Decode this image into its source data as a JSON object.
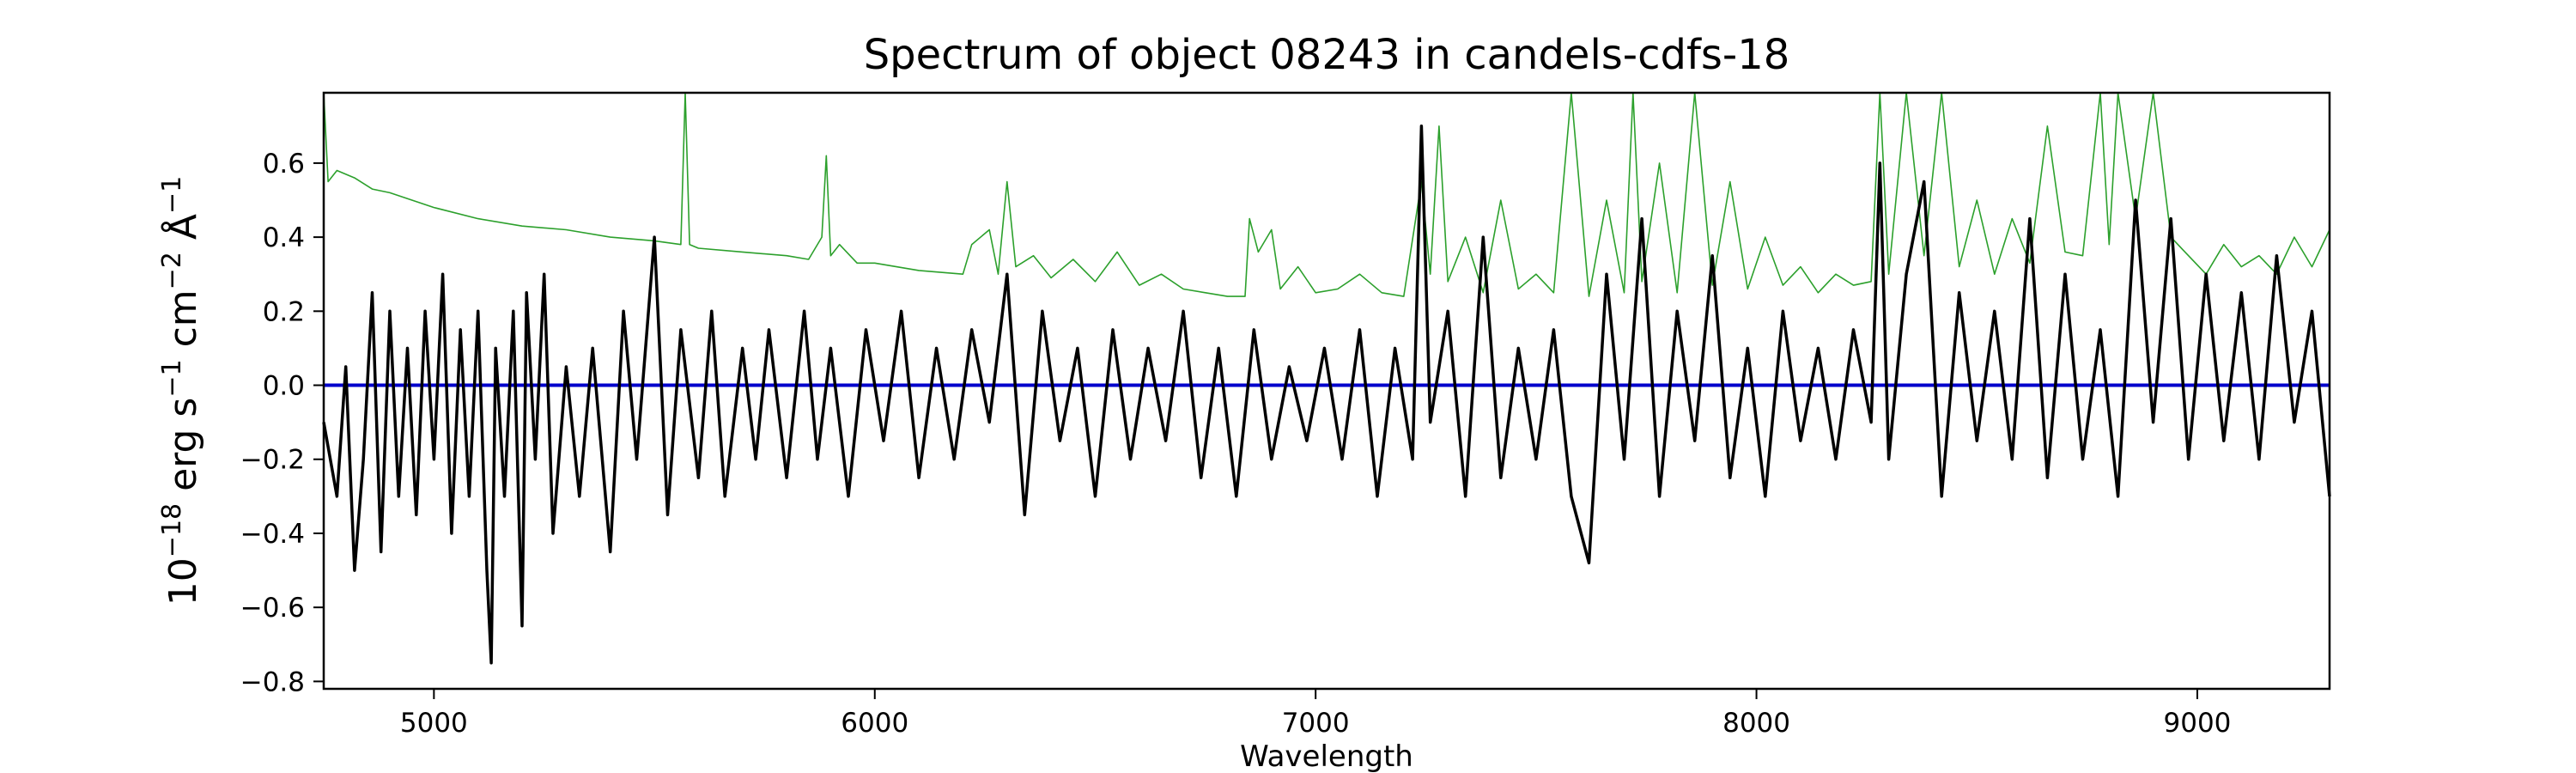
{
  "chart_data": {
    "type": "line",
    "title": "Spectrum of object 08243 in candels-cdfs-18",
    "xlabel": "Wavelength",
    "ylabel": {
      "base": "10",
      "exp": "−18",
      "unit_1": " erg s",
      "exp_1": "−1",
      "unit_2": " cm",
      "exp_2": "−2",
      "unit_3": " Å",
      "exp_3": "−1"
    },
    "xlim": [
      4750,
      9300
    ],
    "ylim": [
      -0.82,
      0.79
    ],
    "xticks": [
      5000,
      6000,
      7000,
      8000,
      9000
    ],
    "xtick_labels": [
      "5000",
      "6000",
      "7000",
      "8000",
      "9000"
    ],
    "yticks": [
      -0.8,
      -0.6,
      -0.4,
      -0.2,
      0.0,
      0.2,
      0.4,
      0.6
    ],
    "ytick_labels": [
      "−0.8",
      "−0.6",
      "−0.4",
      "−0.2",
      "0.0",
      "0.2",
      "0.4",
      "0.6"
    ],
    "grid": false,
    "colors": {
      "flux": "#000000",
      "error": "#2ca02c",
      "zero": "#0000cc"
    },
    "series": [
      {
        "role": "flux",
        "color": "#000000",
        "x": [
          4750,
          4780,
          4800,
          4820,
          4840,
          4860,
          4880,
          4900,
          4920,
          4940,
          4960,
          4980,
          5000,
          5020,
          5040,
          5060,
          5080,
          5100,
          5120,
          5130,
          5140,
          5160,
          5180,
          5200,
          5210,
          5230,
          5250,
          5270,
          5300,
          5330,
          5360,
          5400,
          5430,
          5460,
          5500,
          5530,
          5560,
          5600,
          5630,
          5660,
          5700,
          5730,
          5760,
          5800,
          5840,
          5870,
          5900,
          5940,
          5980,
          6020,
          6060,
          6100,
          6140,
          6180,
          6220,
          6260,
          6300,
          6340,
          6380,
          6420,
          6460,
          6500,
          6540,
          6580,
          6620,
          6660,
          6700,
          6740,
          6780,
          6820,
          6860,
          6900,
          6940,
          6980,
          7020,
          7060,
          7100,
          7140,
          7180,
          7220,
          7240,
          7260,
          7300,
          7340,
          7380,
          7420,
          7460,
          7500,
          7540,
          7580,
          7620,
          7660,
          7700,
          7740,
          7780,
          7820,
          7860,
          7900,
          7940,
          7980,
          8020,
          8060,
          8100,
          8140,
          8180,
          8220,
          8260,
          8280,
          8300,
          8340,
          8380,
          8420,
          8460,
          8500,
          8540,
          8580,
          8620,
          8660,
          8700,
          8740,
          8780,
          8820,
          8860,
          8900,
          8940,
          8980,
          9020,
          9060,
          9100,
          9140,
          9180,
          9220,
          9260,
          9300
        ],
        "y": [
          -0.1,
          -0.3,
          0.05,
          -0.5,
          -0.2,
          0.25,
          -0.45,
          0.2,
          -0.3,
          0.1,
          -0.35,
          0.2,
          -0.2,
          0.3,
          -0.4,
          0.15,
          -0.3,
          0.2,
          -0.5,
          -0.75,
          0.1,
          -0.3,
          0.2,
          -0.65,
          0.25,
          -0.2,
          0.3,
          -0.4,
          0.05,
          -0.3,
          0.1,
          -0.45,
          0.2,
          -0.2,
          0.4,
          -0.35,
          0.15,
          -0.25,
          0.2,
          -0.3,
          0.1,
          -0.2,
          0.15,
          -0.25,
          0.2,
          -0.2,
          0.1,
          -0.3,
          0.15,
          -0.15,
          0.2,
          -0.25,
          0.1,
          -0.2,
          0.15,
          -0.1,
          0.3,
          -0.35,
          0.2,
          -0.15,
          0.1,
          -0.3,
          0.15,
          -0.2,
          0.1,
          -0.15,
          0.2,
          -0.25,
          0.1,
          -0.3,
          0.15,
          -0.2,
          0.05,
          -0.15,
          0.1,
          -0.2,
          0.15,
          -0.3,
          0.1,
          -0.2,
          0.7,
          -0.1,
          0.2,
          -0.3,
          0.4,
          -0.25,
          0.1,
          -0.2,
          0.15,
          -0.3,
          -0.48,
          0.3,
          -0.2,
          0.45,
          -0.3,
          0.2,
          -0.15,
          0.35,
          -0.25,
          0.1,
          -0.3,
          0.2,
          -0.15,
          0.1,
          -0.2,
          0.15,
          -0.1,
          0.6,
          -0.2,
          0.3,
          0.55,
          -0.3,
          0.25,
          -0.15,
          0.2,
          -0.2,
          0.45,
          -0.25,
          0.3,
          -0.2,
          0.15,
          -0.3,
          0.5,
          -0.1,
          0.45,
          -0.2,
          0.3,
          -0.15,
          0.25,
          -0.2,
          0.35,
          -0.1,
          0.2,
          -0.3
        ]
      },
      {
        "role": "error",
        "color": "#2ca02c",
        "x": [
          4750,
          4760,
          4780,
          4820,
          4860,
          4900,
          4950,
          5000,
          5100,
          5200,
          5300,
          5400,
          5500,
          5560,
          5570,
          5580,
          5600,
          5700,
          5800,
          5850,
          5880,
          5890,
          5900,
          5920,
          5960,
          6000,
          6100,
          6200,
          6220,
          6260,
          6280,
          6300,
          6320,
          6360,
          6400,
          6450,
          6500,
          6550,
          6600,
          6650,
          6700,
          6750,
          6800,
          6840,
          6850,
          6870,
          6900,
          6920,
          6960,
          7000,
          7050,
          7100,
          7150,
          7200,
          7240,
          7260,
          7280,
          7300,
          7340,
          7380,
          7420,
          7460,
          7500,
          7540,
          7580,
          7620,
          7660,
          7700,
          7720,
          7740,
          7780,
          7820,
          7860,
          7900,
          7940,
          7980,
          8020,
          8060,
          8100,
          8140,
          8180,
          8220,
          8260,
          8280,
          8300,
          8340,
          8380,
          8420,
          8460,
          8500,
          8540,
          8580,
          8620,
          8660,
          8700,
          8740,
          8780,
          8800,
          8820,
          8860,
          8900,
          8940,
          8980,
          9020,
          9060,
          9100,
          9140,
          9180,
          9220,
          9260,
          9300
        ],
        "y": [
          0.79,
          0.55,
          0.58,
          0.56,
          0.53,
          0.52,
          0.5,
          0.48,
          0.45,
          0.43,
          0.42,
          0.4,
          0.39,
          0.38,
          0.79,
          0.38,
          0.37,
          0.36,
          0.35,
          0.34,
          0.4,
          0.62,
          0.35,
          0.38,
          0.33,
          0.33,
          0.31,
          0.3,
          0.38,
          0.42,
          0.3,
          0.55,
          0.32,
          0.35,
          0.29,
          0.34,
          0.28,
          0.36,
          0.27,
          0.3,
          0.26,
          0.25,
          0.24,
          0.24,
          0.45,
          0.36,
          0.42,
          0.26,
          0.32,
          0.25,
          0.26,
          0.3,
          0.25,
          0.24,
          0.55,
          0.3,
          0.7,
          0.28,
          0.4,
          0.25,
          0.5,
          0.26,
          0.3,
          0.25,
          0.79,
          0.24,
          0.5,
          0.25,
          0.79,
          0.28,
          0.6,
          0.25,
          0.79,
          0.27,
          0.55,
          0.26,
          0.4,
          0.27,
          0.32,
          0.25,
          0.3,
          0.27,
          0.28,
          0.79,
          0.3,
          0.79,
          0.35,
          0.79,
          0.32,
          0.5,
          0.3,
          0.45,
          0.33,
          0.7,
          0.36,
          0.35,
          0.79,
          0.38,
          0.79,
          0.45,
          0.79,
          0.4,
          0.35,
          0.3,
          0.38,
          0.32,
          0.35,
          0.3,
          0.4,
          0.32,
          0.42
        ]
      },
      {
        "role": "zero",
        "color": "#0000cc",
        "x": [
          4750,
          9300
        ],
        "y": [
          0.0,
          0.0
        ]
      }
    ]
  }
}
